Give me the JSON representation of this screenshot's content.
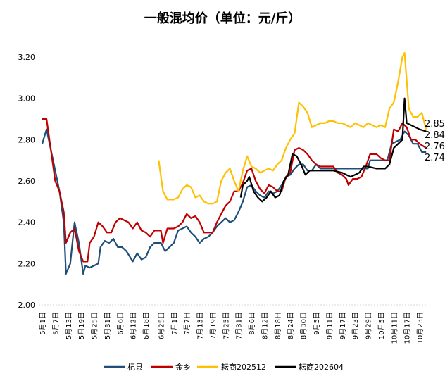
{
  "chart_data": {
    "type": "line",
    "title": "一般混均价（单位：元/斤）",
    "xlabel": "",
    "ylabel": "",
    "ylim": [
      2.0,
      3.2
    ],
    "yticks": [
      "2.00",
      "2.20",
      "2.40",
      "2.60",
      "2.80",
      "3.00",
      "3.20"
    ],
    "xticks": [
      "5月1日",
      "5月7日",
      "5月13日",
      "5月19日",
      "5月25日",
      "5月31日",
      "6月6日",
      "6月12日",
      "6月18日",
      "6月25日",
      "7月1日",
      "7月7日",
      "7月13日",
      "7月19日",
      "7月25日",
      "7月31日",
      "8月6日",
      "8月12日",
      "8月18日",
      "8月24日",
      "8月30日",
      "9月5日",
      "9月11日",
      "9月17日",
      "9月23日",
      "9月29日",
      "10月5日",
      "10月11日",
      "10月17日",
      "10月23日"
    ],
    "grid": false,
    "legend_position": "bottom",
    "series": [
      {
        "name": "杞县",
        "color": "#1F4E79",
        "end_label": "2.74",
        "points": [
          [
            "05-01",
            2.78
          ],
          [
            "05-03",
            2.85
          ],
          [
            "05-05",
            2.75
          ],
          [
            "05-07",
            2.65
          ],
          [
            "05-09",
            2.55
          ],
          [
            "05-11",
            2.4
          ],
          [
            "05-12",
            2.15
          ],
          [
            "05-14",
            2.2
          ],
          [
            "05-16",
            2.4
          ],
          [
            "05-18",
            2.3
          ],
          [
            "05-20",
            2.15
          ],
          [
            "05-21",
            2.19
          ],
          [
            "05-23",
            2.18
          ],
          [
            "05-25",
            2.19
          ],
          [
            "05-27",
            2.2
          ],
          [
            "05-28",
            2.28
          ],
          [
            "05-30",
            2.31
          ],
          [
            "06-01",
            2.3
          ],
          [
            "06-03",
            2.32
          ],
          [
            "06-05",
            2.28
          ],
          [
            "06-07",
            2.28
          ],
          [
            "06-09",
            2.26
          ],
          [
            "06-12",
            2.21
          ],
          [
            "06-14",
            2.25
          ],
          [
            "06-16",
            2.22
          ],
          [
            "06-18",
            2.23
          ],
          [
            "06-20",
            2.28
          ],
          [
            "06-22",
            2.3
          ],
          [
            "06-25",
            2.3
          ],
          [
            "06-27",
            2.26
          ],
          [
            "06-29",
            2.28
          ],
          [
            "07-01",
            2.3
          ],
          [
            "07-03",
            2.36
          ],
          [
            "07-05",
            2.37
          ],
          [
            "07-07",
            2.38
          ],
          [
            "07-09",
            2.35
          ],
          [
            "07-11",
            2.33
          ],
          [
            "07-13",
            2.3
          ],
          [
            "07-15",
            2.32
          ],
          [
            "07-17",
            2.33
          ],
          [
            "07-19",
            2.35
          ],
          [
            "07-21",
            2.38
          ],
          [
            "07-23",
            2.4
          ],
          [
            "07-25",
            2.42
          ],
          [
            "07-27",
            2.4
          ],
          [
            "07-29",
            2.41
          ],
          [
            "07-31",
            2.45
          ],
          [
            "08-02",
            2.5
          ],
          [
            "08-04",
            2.57
          ],
          [
            "08-06",
            2.58
          ],
          [
            "08-08",
            2.55
          ],
          [
            "08-10",
            2.53
          ],
          [
            "08-12",
            2.52
          ],
          [
            "08-14",
            2.55
          ],
          [
            "08-16",
            2.54
          ],
          [
            "08-18",
            2.55
          ],
          [
            "08-20",
            2.58
          ],
          [
            "08-22",
            2.62
          ],
          [
            "08-24",
            2.63
          ],
          [
            "08-26",
            2.66
          ],
          [
            "08-28",
            2.68
          ],
          [
            "08-30",
            2.68
          ],
          [
            "09-01",
            2.65
          ],
          [
            "09-03",
            2.65
          ],
          [
            "09-05",
            2.68
          ],
          [
            "09-07",
            2.66
          ],
          [
            "09-10",
            2.66
          ],
          [
            "09-20",
            2.66
          ],
          [
            "09-29",
            2.66
          ],
          [
            "09-30",
            2.7
          ],
          [
            "10-05",
            2.7
          ],
          [
            "10-08",
            2.7
          ],
          [
            "10-10",
            2.78
          ],
          [
            "10-12",
            2.79
          ],
          [
            "10-14",
            2.8
          ],
          [
            "10-16",
            2.84
          ],
          [
            "10-18",
            2.82
          ],
          [
            "10-20",
            2.78
          ],
          [
            "10-22",
            2.78
          ],
          [
            "10-24",
            2.74
          ],
          [
            "10-26",
            2.74
          ]
        ]
      },
      {
        "name": "金乡",
        "color": "#C00000",
        "end_label": "2.76",
        "points": [
          [
            "05-01",
            2.9
          ],
          [
            "05-03",
            2.9
          ],
          [
            "05-05",
            2.75
          ],
          [
            "05-07",
            2.6
          ],
          [
            "05-09",
            2.55
          ],
          [
            "05-11",
            2.45
          ],
          [
            "05-12",
            2.3
          ],
          [
            "05-14",
            2.35
          ],
          [
            "05-16",
            2.37
          ],
          [
            "05-18",
            2.26
          ],
          [
            "05-20",
            2.21
          ],
          [
            "05-22",
            2.21
          ],
          [
            "05-23",
            2.3
          ],
          [
            "05-25",
            2.33
          ],
          [
            "05-27",
            2.4
          ],
          [
            "05-29",
            2.38
          ],
          [
            "05-31",
            2.35
          ],
          [
            "06-02",
            2.35
          ],
          [
            "06-04",
            2.4
          ],
          [
            "06-06",
            2.42
          ],
          [
            "06-08",
            2.41
          ],
          [
            "06-10",
            2.4
          ],
          [
            "06-12",
            2.37
          ],
          [
            "06-14",
            2.4
          ],
          [
            "06-16",
            2.36
          ],
          [
            "06-18",
            2.35
          ],
          [
            "06-20",
            2.33
          ],
          [
            "06-22",
            2.36
          ],
          [
            "06-25",
            2.36
          ],
          [
            "06-26",
            2.3
          ],
          [
            "06-28",
            2.37
          ],
          [
            "07-01",
            2.37
          ],
          [
            "07-03",
            2.38
          ],
          [
            "07-05",
            2.4
          ],
          [
            "07-07",
            2.44
          ],
          [
            "07-09",
            2.42
          ],
          [
            "07-11",
            2.43
          ],
          [
            "07-13",
            2.4
          ],
          [
            "07-15",
            2.35
          ],
          [
            "07-17",
            2.35
          ],
          [
            "07-19",
            2.35
          ],
          [
            "07-21",
            2.4
          ],
          [
            "07-23",
            2.44
          ],
          [
            "07-25",
            2.48
          ],
          [
            "07-27",
            2.5
          ],
          [
            "07-29",
            2.55
          ],
          [
            "07-31",
            2.55
          ],
          [
            "08-02",
            2.59
          ],
          [
            "08-04",
            2.65
          ],
          [
            "08-06",
            2.66
          ],
          [
            "08-08",
            2.6
          ],
          [
            "08-10",
            2.56
          ],
          [
            "08-12",
            2.54
          ],
          [
            "08-14",
            2.58
          ],
          [
            "08-16",
            2.57
          ],
          [
            "08-18",
            2.55
          ],
          [
            "08-20",
            2.55
          ],
          [
            "08-22",
            2.62
          ],
          [
            "08-24",
            2.64
          ],
          [
            "08-26",
            2.75
          ],
          [
            "08-28",
            2.76
          ],
          [
            "08-30",
            2.75
          ],
          [
            "09-01",
            2.73
          ],
          [
            "09-03",
            2.7
          ],
          [
            "09-05",
            2.68
          ],
          [
            "09-07",
            2.67
          ],
          [
            "09-13",
            2.67
          ],
          [
            "09-15",
            2.64
          ],
          [
            "09-17",
            2.63
          ],
          [
            "09-19",
            2.61
          ],
          [
            "09-20",
            2.58
          ],
          [
            "09-22",
            2.61
          ],
          [
            "09-24",
            2.61
          ],
          [
            "09-26",
            2.62
          ],
          [
            "09-28",
            2.67
          ],
          [
            "09-30",
            2.73
          ],
          [
            "10-03",
            2.73
          ],
          [
            "10-05",
            2.71
          ],
          [
            "10-07",
            2.7
          ],
          [
            "10-09",
            2.7
          ],
          [
            "10-11",
            2.85
          ],
          [
            "10-13",
            2.84
          ],
          [
            "10-15",
            2.88
          ],
          [
            "10-17",
            2.86
          ],
          [
            "10-19",
            2.8
          ],
          [
            "10-21",
            2.8
          ],
          [
            "10-23",
            2.78
          ],
          [
            "10-26",
            2.76
          ]
        ]
      },
      {
        "name": "耘商202512",
        "color": "#FFC000",
        "end_label": "2.85",
        "points": [
          [
            "06-24",
            2.7
          ],
          [
            "06-26",
            2.55
          ],
          [
            "06-28",
            2.51
          ],
          [
            "07-01",
            2.51
          ],
          [
            "07-03",
            2.52
          ],
          [
            "07-05",
            2.56
          ],
          [
            "07-07",
            2.58
          ],
          [
            "07-09",
            2.57
          ],
          [
            "07-11",
            2.52
          ],
          [
            "07-13",
            2.53
          ],
          [
            "07-15",
            2.5
          ],
          [
            "07-17",
            2.49
          ],
          [
            "07-19",
            2.49
          ],
          [
            "07-21",
            2.5
          ],
          [
            "07-23",
            2.6
          ],
          [
            "07-25",
            2.64
          ],
          [
            "07-27",
            2.66
          ],
          [
            "07-29",
            2.6
          ],
          [
            "07-31",
            2.55
          ],
          [
            "08-02",
            2.65
          ],
          [
            "08-04",
            2.72
          ],
          [
            "08-06",
            2.67
          ],
          [
            "08-08",
            2.66
          ],
          [
            "08-10",
            2.64
          ],
          [
            "08-12",
            2.65
          ],
          [
            "08-14",
            2.66
          ],
          [
            "08-16",
            2.65
          ],
          [
            "08-18",
            2.68
          ],
          [
            "08-20",
            2.7
          ],
          [
            "08-22",
            2.76
          ],
          [
            "08-24",
            2.8
          ],
          [
            "08-26",
            2.83
          ],
          [
            "08-28",
            2.98
          ],
          [
            "08-30",
            2.96
          ],
          [
            "09-01",
            2.93
          ],
          [
            "09-03",
            2.86
          ],
          [
            "09-05",
            2.87
          ],
          [
            "09-07",
            2.88
          ],
          [
            "09-09",
            2.88
          ],
          [
            "09-11",
            2.89
          ],
          [
            "09-13",
            2.89
          ],
          [
            "09-15",
            2.88
          ],
          [
            "09-17",
            2.88
          ],
          [
            "09-19",
            2.87
          ],
          [
            "09-21",
            2.86
          ],
          [
            "09-23",
            2.88
          ],
          [
            "09-25",
            2.87
          ],
          [
            "09-27",
            2.86
          ],
          [
            "09-29",
            2.88
          ],
          [
            "10-01",
            2.87
          ],
          [
            "10-03",
            2.86
          ],
          [
            "10-05",
            2.87
          ],
          [
            "10-07",
            2.86
          ],
          [
            "10-09",
            2.95
          ],
          [
            "10-11",
            2.98
          ],
          [
            "10-13",
            3.08
          ],
          [
            "10-15",
            3.2
          ],
          [
            "10-16",
            3.22
          ],
          [
            "10-18",
            2.95
          ],
          [
            "10-20",
            2.91
          ],
          [
            "10-22",
            2.91
          ],
          [
            "10-24",
            2.93
          ],
          [
            "10-26",
            2.85
          ]
        ]
      },
      {
        "name": "耘商202604",
        "color": "#000000",
        "end_label": "2.84",
        "points": [
          [
            "08-01",
            2.52
          ],
          [
            "08-02",
            2.58
          ],
          [
            "08-04",
            2.6
          ],
          [
            "08-05",
            2.62
          ],
          [
            "08-07",
            2.55
          ],
          [
            "08-09",
            2.52
          ],
          [
            "08-11",
            2.5
          ],
          [
            "08-13",
            2.52
          ],
          [
            "08-15",
            2.55
          ],
          [
            "08-17",
            2.52
          ],
          [
            "08-19",
            2.53
          ],
          [
            "08-21",
            2.6
          ],
          [
            "08-23",
            2.63
          ],
          [
            "08-25",
            2.73
          ],
          [
            "08-27",
            2.72
          ],
          [
            "08-29",
            2.68
          ],
          [
            "08-31",
            2.63
          ],
          [
            "09-02",
            2.65
          ],
          [
            "09-13",
            2.65
          ],
          [
            "09-17",
            2.64
          ],
          [
            "09-19",
            2.63
          ],
          [
            "09-21",
            2.62
          ],
          [
            "09-23",
            2.63
          ],
          [
            "09-25",
            2.64
          ],
          [
            "09-27",
            2.67
          ],
          [
            "09-29",
            2.67
          ],
          [
            "10-03",
            2.66
          ],
          [
            "10-07",
            2.66
          ],
          [
            "10-09",
            2.68
          ],
          [
            "10-11",
            2.76
          ],
          [
            "10-13",
            2.78
          ],
          [
            "10-15",
            2.8
          ],
          [
            "10-16",
            3.0
          ],
          [
            "10-17",
            2.88
          ],
          [
            "10-19",
            2.87
          ],
          [
            "10-21",
            2.86
          ],
          [
            "10-23",
            2.85
          ],
          [
            "10-26",
            2.84
          ]
        ]
      }
    ]
  }
}
